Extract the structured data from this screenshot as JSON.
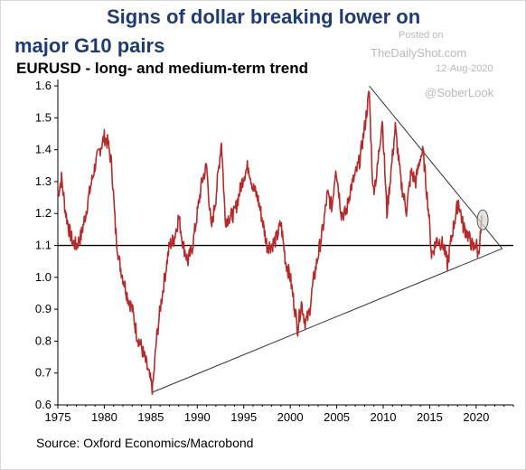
{
  "header": {
    "title_line1": "Signs of dollar breaking lower on",
    "title_line2": "major G10 pairs",
    "subtitle": "EURUSD - long- and medium-term trend",
    "watermark_posted": "Posted on",
    "watermark_site": "TheDailyShot.com",
    "watermark_date": "12-Aug-2020",
    "watermark_handle": "@SoberLook"
  },
  "footer": {
    "source": "Source: Oxford Economics/Macrobond"
  },
  "chart_data": {
    "type": "line",
    "title": "EURUSD - long- and medium-term trend",
    "xlabel": "",
    "ylabel": "",
    "xlim": [
      1975,
      2024
    ],
    "ylim": [
      0.6,
      1.62
    ],
    "x_ticks": [
      1975,
      1980,
      1985,
      1990,
      1995,
      2000,
      2005,
      2010,
      2015,
      2020
    ],
    "y_ticks": [
      0.6,
      0.7,
      0.8,
      0.9,
      1.0,
      1.1,
      1.2,
      1.3,
      1.4,
      1.5,
      1.6
    ],
    "y_tick_labels": [
      "0.6",
      "0.7",
      "0.8",
      "0.9",
      "1.0",
      "1.1",
      "1.2",
      "1.3",
      "1.4",
      "1.5",
      "1.6"
    ],
    "grid": false,
    "colors": {
      "series": "#b52a2a",
      "trendline": "#333333",
      "reference": "#000000",
      "highlight_fill": "#d6d6d6"
    },
    "series": [
      {
        "values": [
          [
            1975.0,
            1.26
          ],
          [
            1975.4,
            1.31
          ],
          [
            1975.8,
            1.21
          ],
          [
            1976.2,
            1.15
          ],
          [
            1976.6,
            1.11
          ],
          [
            1977.0,
            1.1
          ],
          [
            1977.5,
            1.13
          ],
          [
            1978.0,
            1.2
          ],
          [
            1978.5,
            1.28
          ],
          [
            1979.0,
            1.35
          ],
          [
            1979.5,
            1.4
          ],
          [
            1980.0,
            1.44
          ],
          [
            1980.4,
            1.42
          ],
          [
            1980.8,
            1.35
          ],
          [
            1981.2,
            1.15
          ],
          [
            1981.6,
            1.05
          ],
          [
            1982.0,
            1.0
          ],
          [
            1982.5,
            0.94
          ],
          [
            1983.0,
            0.9
          ],
          [
            1983.5,
            0.82
          ],
          [
            1984.0,
            0.78
          ],
          [
            1984.5,
            0.73
          ],
          [
            1985.0,
            0.67
          ],
          [
            1985.2,
            0.65
          ],
          [
            1985.6,
            0.8
          ],
          [
            1986.0,
            0.9
          ],
          [
            1986.5,
            1.0
          ],
          [
            1987.0,
            1.1
          ],
          [
            1987.5,
            1.12
          ],
          [
            1988.0,
            1.19
          ],
          [
            1988.5,
            1.1
          ],
          [
            1989.0,
            1.05
          ],
          [
            1989.5,
            1.1
          ],
          [
            1990.0,
            1.2
          ],
          [
            1990.5,
            1.3
          ],
          [
            1991.0,
            1.35
          ],
          [
            1991.5,
            1.15
          ],
          [
            1992.0,
            1.25
          ],
          [
            1992.6,
            1.43
          ],
          [
            1993.0,
            1.18
          ],
          [
            1994.0,
            1.2
          ],
          [
            1995.0,
            1.32
          ],
          [
            1995.5,
            1.35
          ],
          [
            1996.0,
            1.28
          ],
          [
            1996.5,
            1.25
          ],
          [
            1997.0,
            1.18
          ],
          [
            1997.5,
            1.1
          ],
          [
            1998.0,
            1.1
          ],
          [
            1998.5,
            1.12
          ],
          [
            1999.0,
            1.17
          ],
          [
            1999.5,
            1.05
          ],
          [
            2000.0,
            1.0
          ],
          [
            2000.5,
            0.9
          ],
          [
            2000.8,
            0.84
          ],
          [
            2001.2,
            0.92
          ],
          [
            2001.6,
            0.86
          ],
          [
            2002.0,
            0.88
          ],
          [
            2002.5,
            0.99
          ],
          [
            2003.0,
            1.07
          ],
          [
            2003.5,
            1.15
          ],
          [
            2004.0,
            1.26
          ],
          [
            2004.5,
            1.22
          ],
          [
            2004.9,
            1.35
          ],
          [
            2005.5,
            1.2
          ],
          [
            2006.0,
            1.2
          ],
          [
            2006.5,
            1.28
          ],
          [
            2007.0,
            1.32
          ],
          [
            2007.5,
            1.37
          ],
          [
            2008.0,
            1.47
          ],
          [
            2008.5,
            1.58
          ],
          [
            2008.9,
            1.27
          ],
          [
            2009.3,
            1.32
          ],
          [
            2009.9,
            1.5
          ],
          [
            2010.4,
            1.2
          ],
          [
            2011.0,
            1.38
          ],
          [
            2011.3,
            1.47
          ],
          [
            2011.9,
            1.3
          ],
          [
            2012.5,
            1.21
          ],
          [
            2013.0,
            1.33
          ],
          [
            2013.5,
            1.3
          ],
          [
            2014.0,
            1.38
          ],
          [
            2014.3,
            1.39
          ],
          [
            2014.9,
            1.2
          ],
          [
            2015.2,
            1.07
          ],
          [
            2015.8,
            1.12
          ],
          [
            2016.5,
            1.1
          ],
          [
            2016.9,
            1.04
          ],
          [
            2017.5,
            1.15
          ],
          [
            2018.1,
            1.24
          ],
          [
            2018.6,
            1.16
          ],
          [
            2019.0,
            1.14
          ],
          [
            2019.7,
            1.09
          ],
          [
            2020.0,
            1.11
          ],
          [
            2020.2,
            1.07
          ],
          [
            2020.5,
            1.14
          ],
          [
            2020.6,
            1.18
          ]
        ]
      }
    ],
    "trendlines": [
      {
        "from": [
          2008.5,
          1.6
        ],
        "to": [
          2022.8,
          1.09
        ]
      },
      {
        "from": [
          1985.2,
          0.64
        ],
        "to": [
          2022.8,
          1.09
        ]
      }
    ],
    "reference_line": {
      "y": 1.1
    },
    "highlight": {
      "x": 2020.7,
      "y": 1.18
    }
  }
}
